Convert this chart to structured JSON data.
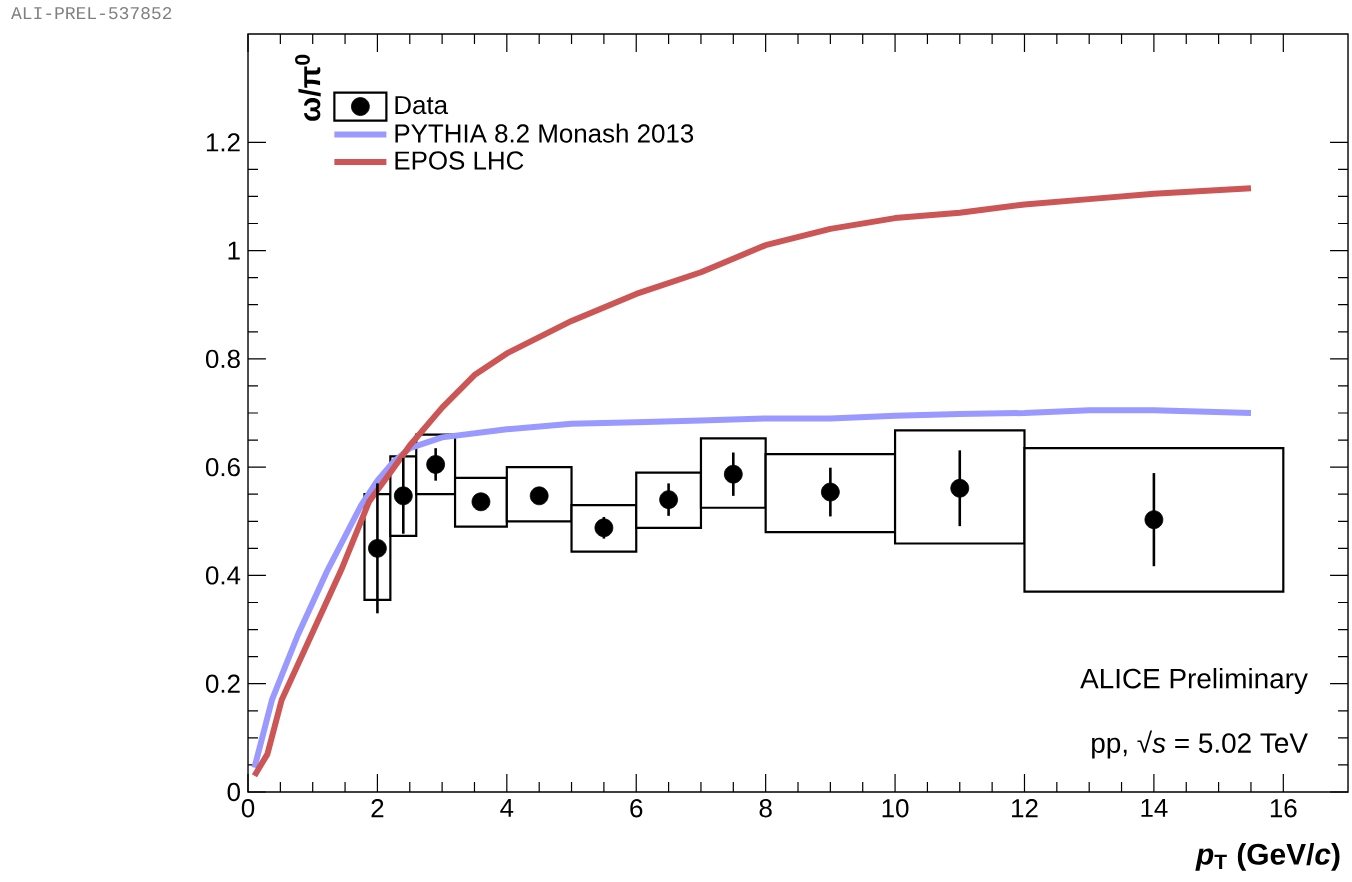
{
  "chart_data": {
    "type": "scatter",
    "xlabel": "*p*$_{T}$ (GeV/*c*)",
    "ylabel": "ω/π$^{0}$",
    "xlim": [
      0,
      17
    ],
    "ylim": [
      0,
      1.4
    ],
    "xticks": [
      0,
      2,
      4,
      6,
      8,
      10,
      12,
      14,
      16
    ],
    "yticks": [
      0,
      0.2,
      0.4,
      0.6,
      0.8,
      1,
      1.2
    ],
    "legend": "top left",
    "grid": false,
    "annotations": [
      "ALICE Preliminary",
      "pp, √*s* = 5.02 TeV",
      "ALI-PREL-537852"
    ],
    "series": [
      {
        "name": "Data",
        "marker": "circle",
        "color": "#000000",
        "x": [
          2,
          2.4,
          2.9,
          3.6,
          4.5,
          5.5,
          6.5,
          7.5,
          9,
          11,
          14
        ],
        "values": [
          0.45,
          0.547,
          0.605,
          0.536,
          0.547,
          0.488,
          0.54,
          0.587,
          0.554,
          0.561,
          0.503
        ],
        "errors": [
          0.12,
          0.07,
          0.03,
          0.015,
          0.01,
          0.02,
          0.03,
          0.04,
          0.045,
          0.07,
          0.086
        ]
      },
      {
        "type": "bar",
        "color": "#000000",
        "x": [
          2,
          2.4,
          2.9,
          3.6,
          4.5,
          5.5,
          6.5,
          7.5,
          9,
          11,
          14
        ],
        "base": [
          0.355,
          0.473,
          0.55,
          0.49,
          0.5,
          0.444,
          0.488,
          0.525,
          0.48,
          0.459,
          0.37
        ],
        "values": [
          0.195,
          0.147,
          0.11,
          0.09,
          0.1,
          0.086,
          0.102,
          0.128,
          0.144,
          0.209,
          0.265
        ]
      },
      {
        "name": "PYTHIA 8.2 Monash 2013",
        "type": "line",
        "color": "#9999ff",
        "x": [
          0.1,
          0.37,
          0.77,
          1.23,
          1.75,
          2.0,
          2.25,
          2.5,
          3,
          4,
          5,
          6,
          7,
          8,
          9,
          10,
          11,
          12,
          13,
          14,
          15.5
        ],
        "values": [
          0.045,
          0.17,
          0.29,
          0.41,
          0.53,
          0.575,
          0.61,
          0.635,
          0.655,
          0.67,
          0.68,
          0.683,
          0.686,
          0.69,
          0.69,
          0.695,
          0.698,
          0.7,
          0.705,
          0.705,
          0.7
        ]
      },
      {
        "name": "EPOS LHC",
        "type": "line",
        "color": "#cc5555",
        "x": [
          0.1,
          0.3,
          0.52,
          0.98,
          1.44,
          1.87,
          2.2,
          2.5,
          3,
          3.5,
          4,
          5,
          6,
          7,
          8,
          9,
          10,
          11,
          12,
          13,
          14,
          15.5
        ],
        "values": [
          0.03,
          0.07,
          0.17,
          0.29,
          0.41,
          0.536,
          0.59,
          0.64,
          0.71,
          0.77,
          0.81,
          0.87,
          0.92,
          0.96,
          1.01,
          1.04,
          1.06,
          1.07,
          1.085,
          1.095,
          1.105,
          1.115
        ]
      }
    ]
  }
}
